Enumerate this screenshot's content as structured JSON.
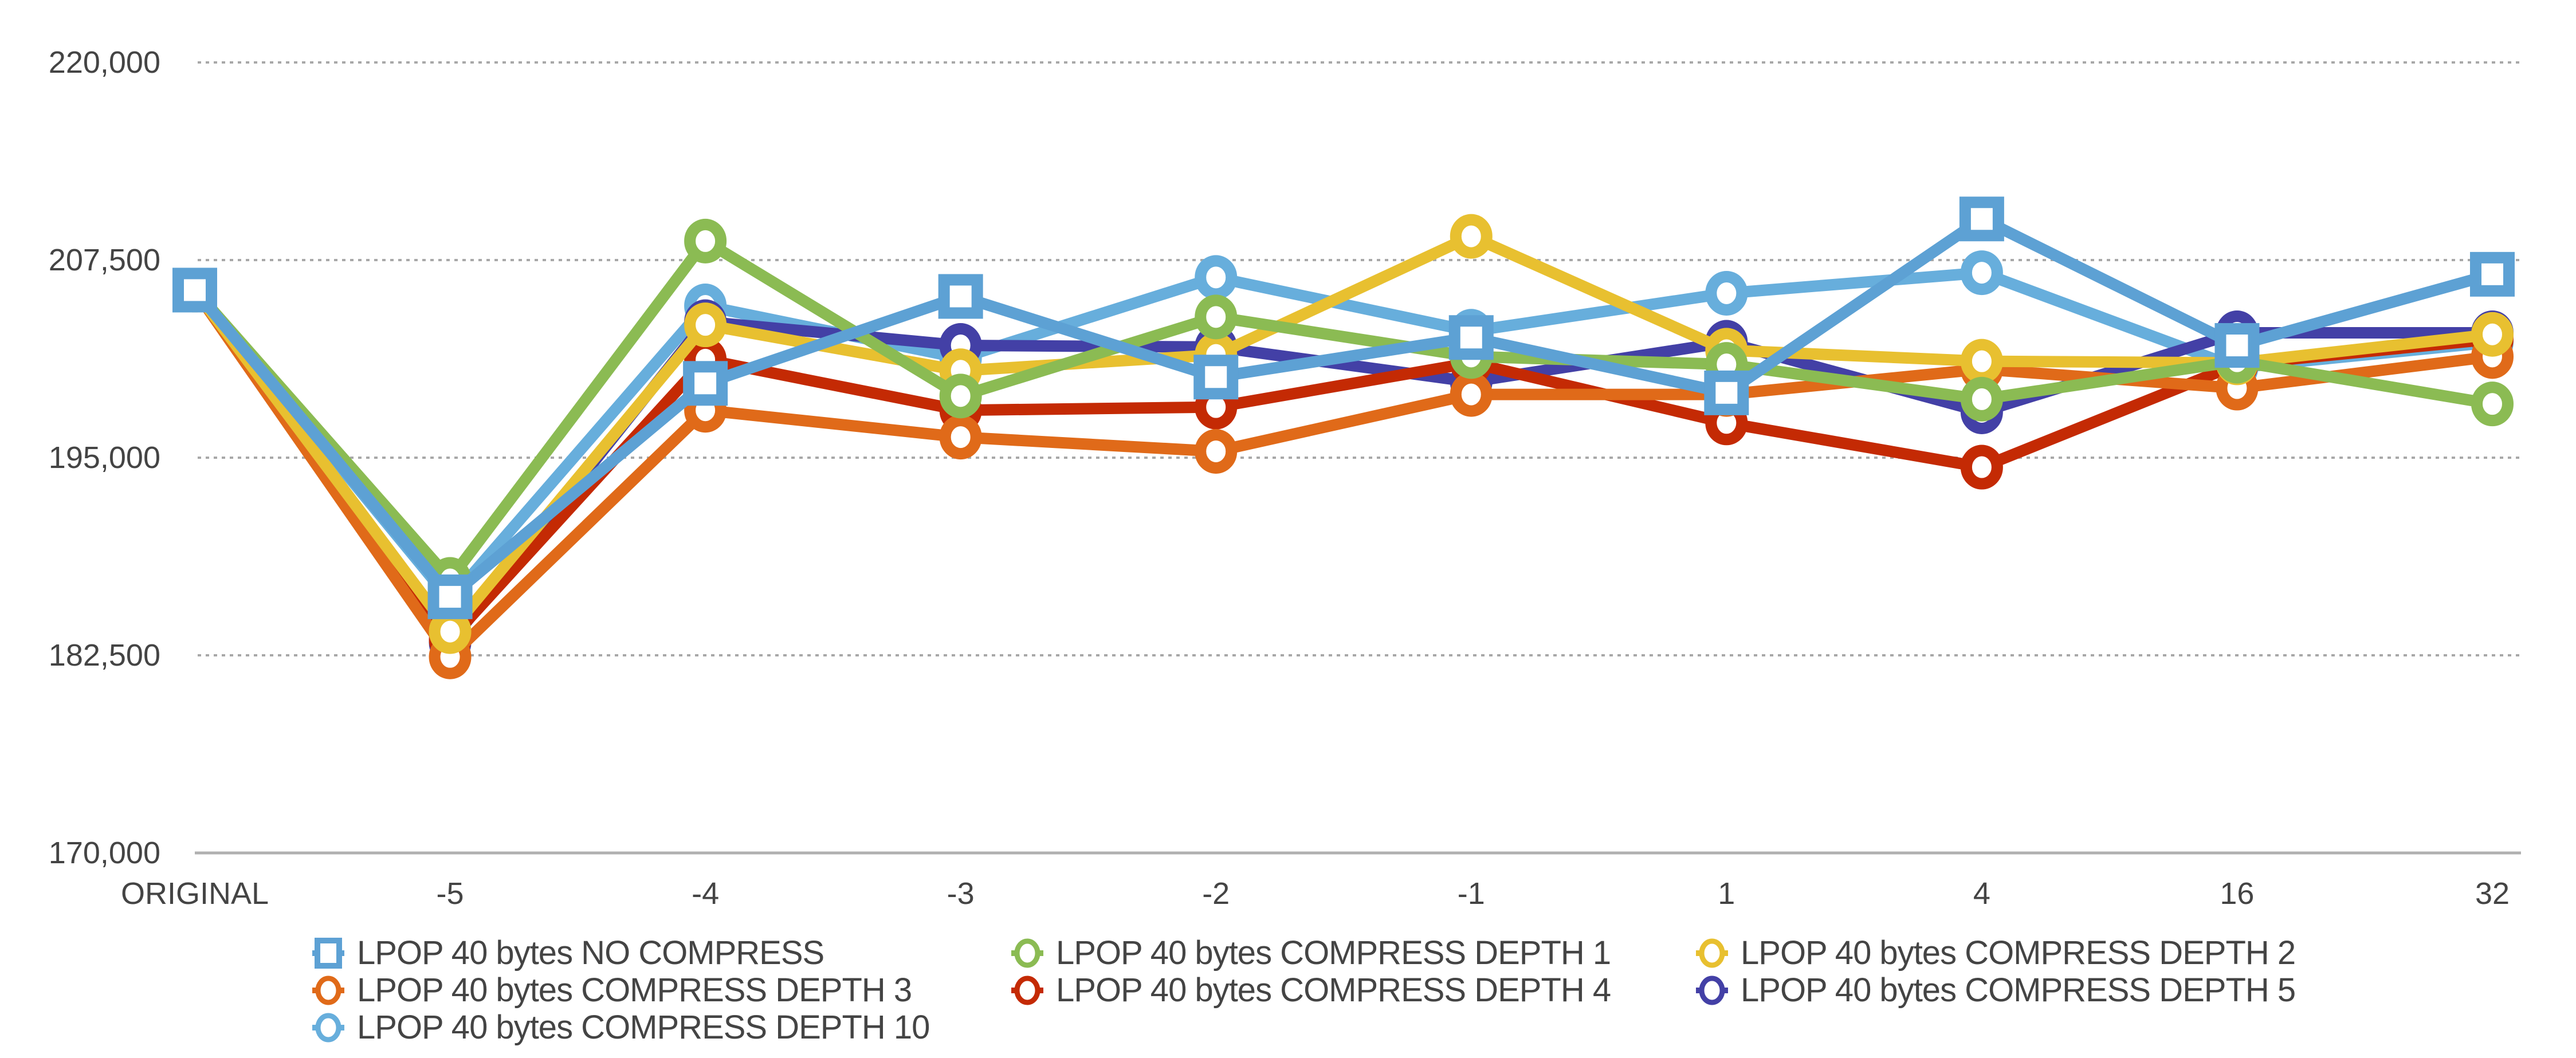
{
  "chart_data": {
    "type": "line",
    "title": "",
    "xlabel": "",
    "ylabel": "",
    "categories": [
      "ORIGINAL",
      "-5",
      "-4",
      "-3",
      "-2",
      "-1",
      "1",
      "4",
      "16",
      "32"
    ],
    "ylim": [
      170000,
      220000
    ],
    "yticks": [
      170000,
      182500,
      195000,
      207500,
      220000
    ],
    "ytick_labels": [
      "170,000",
      "182,500",
      "195,000",
      "207,500",
      "220,000"
    ],
    "grid": true,
    "legend_position": "bottom",
    "series": [
      {
        "name": "LPOP 40 bytes NO COMPRESS",
        "color": "#5da1d4",
        "marker": "square",
        "values": [
          205600,
          186200,
          199700,
          205200,
          200100,
          202600,
          199100,
          210100,
          202100,
          206600
        ]
      },
      {
        "name": "LPOP 40 bytes COMPRESS DEPTH 1",
        "color": "#8bbb53",
        "marker": "circle",
        "values": [
          205600,
          187300,
          208700,
          198900,
          203900,
          201400,
          200900,
          198700,
          201100,
          198400
        ]
      },
      {
        "name": "LPOP 40 bytes COMPRESS DEPTH 2",
        "color": "#e8c030",
        "marker": "circle",
        "values": [
          205600,
          184000,
          203400,
          200500,
          201500,
          209000,
          201800,
          201100,
          201000,
          202800
        ]
      },
      {
        "name": "LPOP 40 bytes COMPRESS DEPTH 3",
        "color": "#e06a19",
        "marker": "circle",
        "values": [
          205600,
          182400,
          198000,
          196300,
          195400,
          199000,
          199000,
          200600,
          199400,
          201400
        ]
      },
      {
        "name": "LPOP 40 bytes COMPRESS DEPTH 4",
        "color": "#c42a04",
        "marker": "circle",
        "values": [
          205600,
          183500,
          201200,
          198000,
          198200,
          201000,
          197200,
          194400,
          200900,
          202500
        ]
      },
      {
        "name": "LPOP 40 bytes COMPRESS DEPTH 5",
        "color": "#4340a6",
        "marker": "circle",
        "values": [
          205600,
          183300,
          203600,
          202100,
          202000,
          199800,
          202300,
          197900,
          202900,
          202900
        ]
      },
      {
        "name": "LPOP 40 bytes COMPRESS DEPTH 10",
        "color": "#67aedc",
        "marker": "circle",
        "values": [
          205600,
          186000,
          204600,
          201300,
          206400,
          203000,
          205400,
          206700,
          200700,
          202300
        ]
      }
    ]
  }
}
